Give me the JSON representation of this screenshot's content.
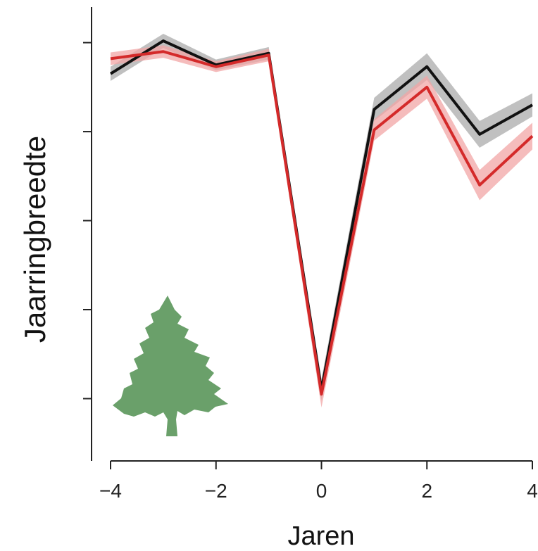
{
  "chart_data": {
    "type": "line",
    "title": "",
    "xlabel": "Jaren",
    "ylabel": "Jaarringbreedte",
    "x": [
      -4,
      -3,
      -2,
      -1,
      0,
      1,
      2,
      3,
      4
    ],
    "x_tick_labels": [
      "−4",
      "−2",
      "0",
      "2",
      "4"
    ],
    "x_tick_values": [
      -4,
      -2,
      0,
      2,
      4
    ],
    "y_ticks": [
      1,
      2,
      3,
      4,
      5
    ],
    "y_tick_labels_shown": false,
    "xlim": [
      -4,
      4
    ],
    "ylim": [
      0.3,
      5.4
    ],
    "grid": false,
    "legend": "none",
    "series": [
      {
        "values": [
          4.65,
          5.02,
          4.75,
          4.88,
          1.1,
          4.25,
          4.73,
          3.97,
          4.3
        ],
        "band": [
          0.08,
          0.08,
          0.06,
          0.07,
          0.12,
          0.13,
          0.15,
          0.15,
          0.13
        ],
        "color": "#111111",
        "band_color": "#b5b5b5"
      },
      {
        "values": [
          4.82,
          4.9,
          4.73,
          4.86,
          1.05,
          4.02,
          4.5,
          3.4,
          3.95
        ],
        "band": [
          0.07,
          0.07,
          0.06,
          0.07,
          0.15,
          0.12,
          0.13,
          0.17,
          0.15
        ],
        "color": "#d42a2a",
        "band_color": "#f2a6a6"
      }
    ],
    "annotation_icon": "conifer-tree-icon",
    "annotation_icon_color": "#6aa06a"
  }
}
